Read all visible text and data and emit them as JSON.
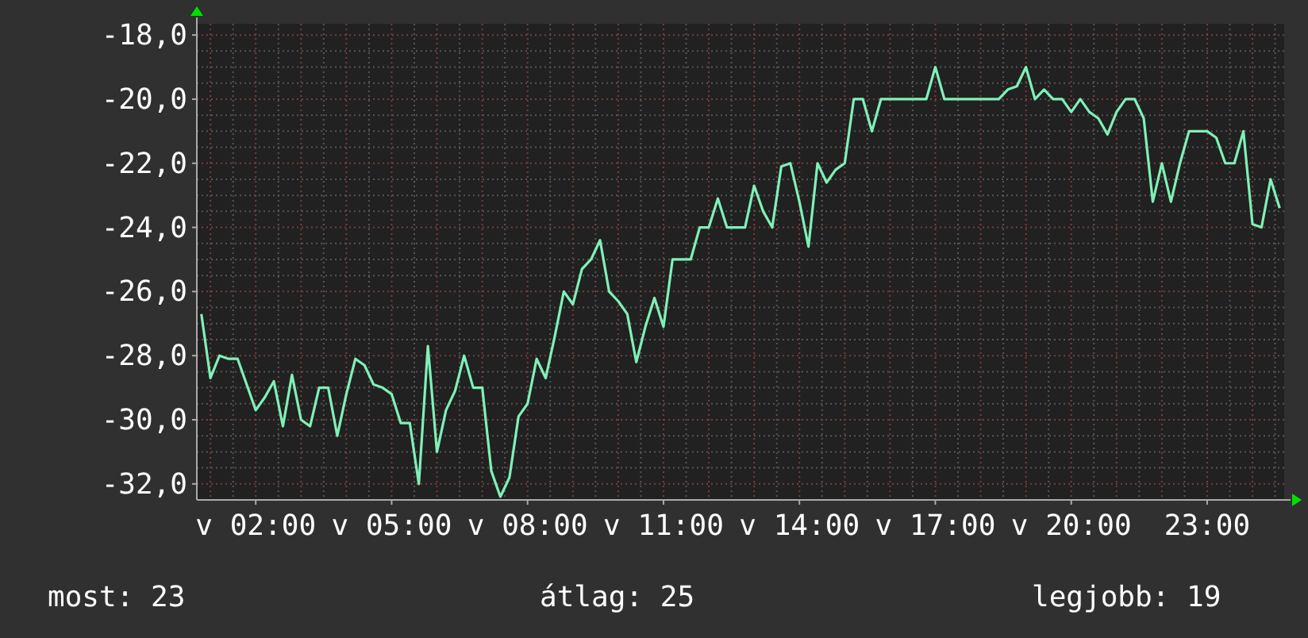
{
  "chart_data": {
    "type": "line",
    "ylim": [
      -32.5,
      -17.65
    ],
    "categories": [
      null,
      null,
      null,
      null,
      null,
      null,
      "v 02:00",
      null,
      null,
      null,
      null,
      null,
      null,
      null,
      null,
      null,
      null,
      null,
      null,
      null,
      null,
      "v 05:00",
      null,
      null,
      null,
      null,
      null,
      null,
      null,
      null,
      null,
      null,
      null,
      null,
      null,
      null,
      "v 08:00",
      null,
      null,
      null,
      null,
      null,
      null,
      null,
      null,
      null,
      null,
      null,
      null,
      null,
      null,
      "v 11:00",
      null,
      null,
      null,
      null,
      null,
      null,
      null,
      null,
      null,
      null,
      null,
      null,
      null,
      null,
      "v 14:00",
      null,
      null,
      null,
      null,
      null,
      null,
      null,
      null,
      null,
      null,
      null,
      null,
      null,
      null,
      "v 17:00",
      null,
      null,
      null,
      null,
      null,
      null,
      null,
      null,
      null,
      null,
      null,
      null,
      null,
      null,
      "v 20:00",
      null,
      null,
      null,
      null,
      null,
      null,
      null,
      null,
      null,
      null,
      null,
      null,
      null,
      null,
      "23:00",
      null,
      null,
      null,
      null,
      null,
      null,
      null,
      null
    ],
    "yticks": [
      {
        "value": -32,
        "label": "-32,0"
      },
      {
        "value": -30,
        "label": "-30,0"
      },
      {
        "value": -28,
        "label": "-28,0"
      },
      {
        "value": -26,
        "label": "-26,0"
      },
      {
        "value": -24,
        "label": "-24,0"
      },
      {
        "value": -22,
        "label": "-22,0"
      },
      {
        "value": -20,
        "label": "-20,0"
      },
      {
        "value": -18,
        "label": "-18,0"
      }
    ],
    "grid": true,
    "marker": "none",
    "line_style": "solid",
    "annotations": [
      "most: 23",
      "átlag: 25",
      "legjobb: 19"
    ],
    "series": [
      {
        "color": "#7ff0b8",
        "values": [
          -26.7,
          -28.7,
          -28.0,
          -28.1,
          -28.1,
          -28.9,
          -29.7,
          -29.3,
          -28.8,
          -30.2,
          -28.6,
          -30.0,
          -30.2,
          -29.0,
          -29.0,
          -30.5,
          -29.2,
          -28.1,
          -28.3,
          -28.9,
          -29.0,
          -29.2,
          -30.1,
          -30.1,
          -32.0,
          -27.7,
          -31.0,
          -29.7,
          -29.1,
          -28.0,
          -29.0,
          -29.0,
          -31.6,
          -32.4,
          -31.8,
          -29.9,
          -29.5,
          -28.1,
          -28.7,
          -27.4,
          -26.0,
          -26.4,
          -25.3,
          -25.0,
          -24.4,
          -26.0,
          -26.3,
          -26.7,
          -28.2,
          -27.1,
          -26.2,
          -27.1,
          -25.0,
          -25.0,
          -25.0,
          -24.0,
          -24.0,
          -23.1,
          -24.0,
          -24.0,
          -24.0,
          -22.7,
          -23.5,
          -24.0,
          -22.1,
          -22.0,
          -23.2,
          -24.6,
          -22.0,
          -22.6,
          -22.2,
          -22.0,
          -20.0,
          -20.0,
          -21.0,
          -20.0,
          -20.0,
          -20.0,
          -20.0,
          -20.0,
          -20.0,
          -19.0,
          -20.0,
          -20.0,
          -20.0,
          -20.0,
          -20.0,
          -20.0,
          -20.0,
          -19.7,
          -19.6,
          -19.0,
          -20.0,
          -19.7,
          -20.0,
          -20.0,
          -20.4,
          -20.0,
          -20.4,
          -20.6,
          -21.1,
          -20.4,
          -20.0,
          -20.0,
          -20.6,
          -23.2,
          -22.0,
          -23.2,
          -22.0,
          -21.0,
          -21.0,
          -21.0,
          -21.2,
          -22.0,
          -22.0,
          -21.0,
          -23.9,
          -24.0,
          -22.5,
          -23.4
        ]
      }
    ]
  }
}
